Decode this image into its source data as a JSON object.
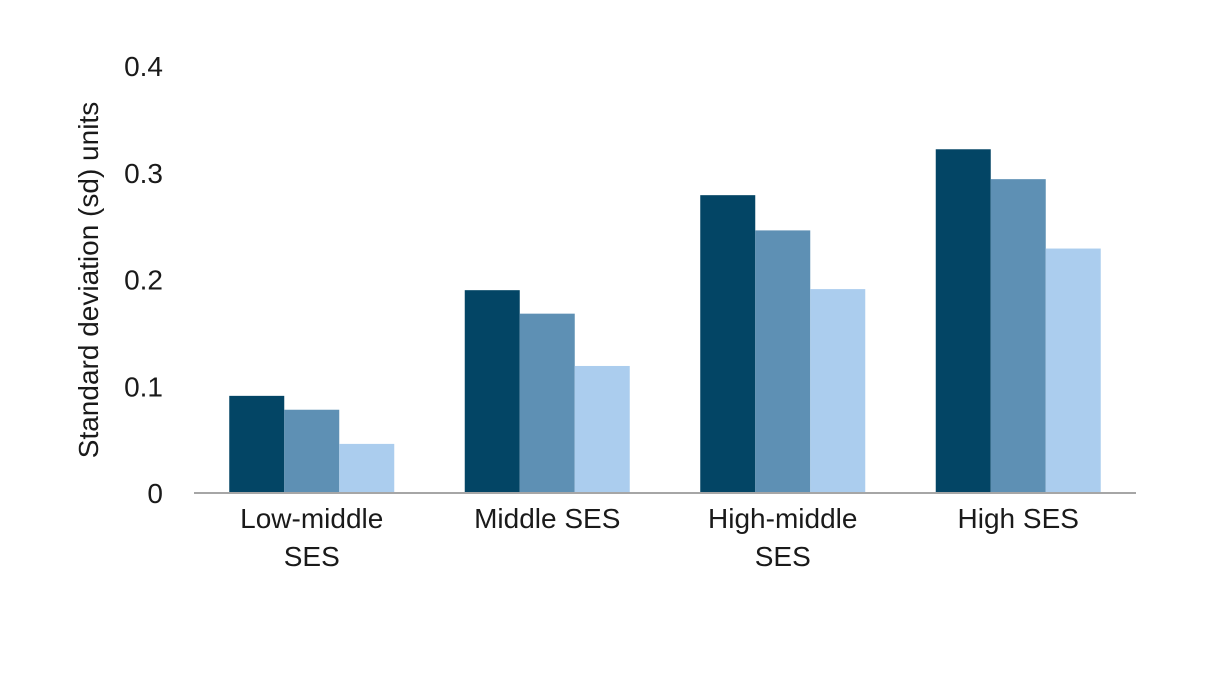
{
  "chart_data": {
    "type": "bar",
    "ylabel": "Standard deviation (sd) units",
    "xlabel": "",
    "ylim": [
      0,
      0.4
    ],
    "yticks": [
      "0",
      "0.1",
      "0.2",
      "0.3",
      "0.4"
    ],
    "grid": false,
    "categories": [
      [
        "Low-middle",
        "SES"
      ],
      [
        "Middle SES"
      ],
      [
        "High-middle",
        "SES"
      ],
      [
        "High SES"
      ]
    ],
    "series": [
      {
        "color": "#034565",
        "values": [
          0.091,
          0.19,
          0.279,
          0.322
        ]
      },
      {
        "color": "#5e90b4",
        "values": [
          0.078,
          0.168,
          0.246,
          0.294
        ]
      },
      {
        "color": "#abcdee",
        "values": [
          0.046,
          0.119,
          0.191,
          0.229
        ]
      }
    ],
    "axis_color": "#a6a6a6"
  }
}
